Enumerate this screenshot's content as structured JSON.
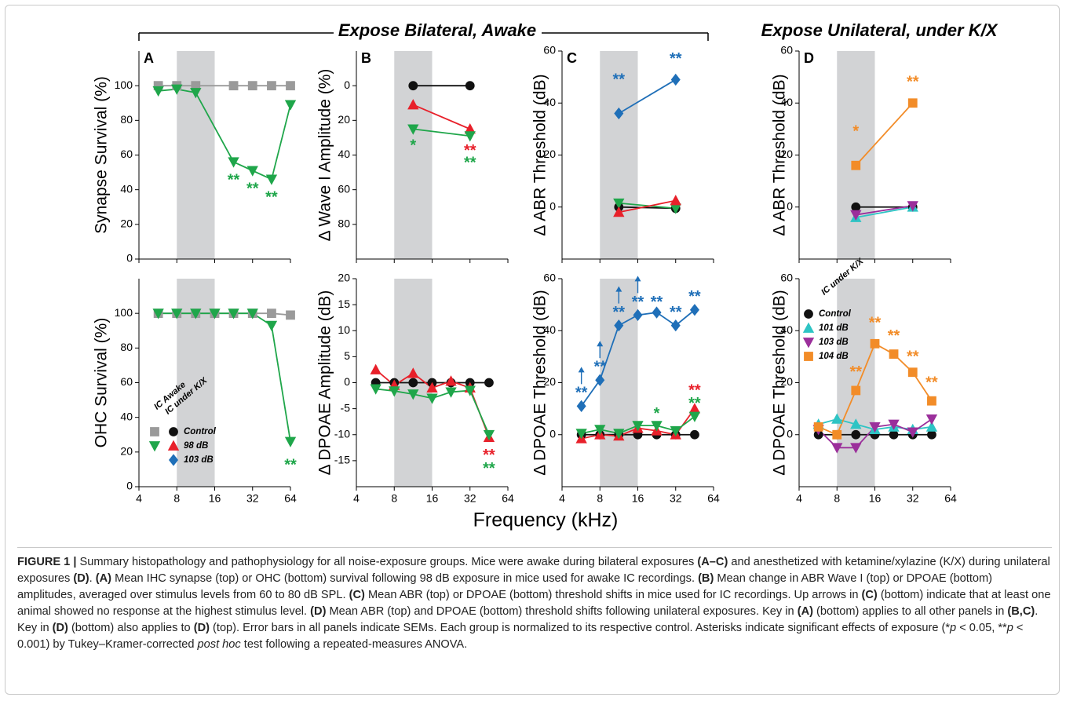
{
  "headers": [
    "Expose Bilateral, Awake",
    "Expose Unilateral, under K/X"
  ],
  "x_label": "Frequency (kHz)",
  "chart_data": [
    {
      "type": "line",
      "panel": "A",
      "y_label": "Synapse Survival (%)",
      "log_x": true,
      "xlim": [
        4,
        64
      ],
      "xticks": [
        4,
        8,
        16,
        32,
        64
      ],
      "show_xtick_labels": false,
      "ylim": [
        0,
        120
      ],
      "yticks": [
        0,
        20,
        40,
        60,
        80,
        100
      ],
      "shade": [
        8,
        16
      ],
      "x": [
        5.7,
        8,
        11.3,
        22.6,
        32,
        45.3,
        64
      ],
      "series": [
        {
          "color": "#9a9a9a",
          "marker": "square",
          "values": [
            100,
            100,
            100,
            100,
            100,
            100,
            100
          ]
        },
        {
          "color": "#1fa64a",
          "marker": "tri-down",
          "values": [
            97,
            98,
            96,
            56,
            51,
            46,
            89
          ]
        }
      ],
      "annotations": [
        {
          "text": "**",
          "x": 22.6,
          "y": 47,
          "color": "#1fa64a"
        },
        {
          "text": "**",
          "x": 32,
          "y": 42,
          "color": "#1fa64a"
        },
        {
          "text": "**",
          "x": 45.3,
          "y": 37,
          "color": "#1fa64a"
        }
      ]
    },
    {
      "type": "line",
      "panel": "B",
      "y_label": "Δ Wave I Amplitude (%)",
      "log_x": true,
      "xlim": [
        4,
        64
      ],
      "xticks": [
        4,
        8,
        16,
        32,
        64
      ],
      "show_xtick_labels": false,
      "ylim": [
        100,
        -20
      ],
      "yticks": [
        0,
        20,
        40,
        60,
        80
      ],
      "shade": [
        8,
        16
      ],
      "x": [
        11.3,
        32
      ],
      "series": [
        {
          "color": "#111111",
          "marker": "circle",
          "values": [
            0,
            0
          ]
        },
        {
          "color": "#e8202a",
          "marker": "tri-up",
          "values": [
            11,
            25
          ]
        },
        {
          "color": "#1fa64a",
          "marker": "tri-down",
          "values": [
            25,
            29
          ]
        }
      ],
      "annotations": [
        {
          "text": "*",
          "x": 11.3,
          "y": 33,
          "color": "#1fa64a"
        },
        {
          "text": "**",
          "x": 32,
          "y": 36,
          "color": "#e8202a"
        },
        {
          "text": "**",
          "x": 32,
          "y": 43,
          "color": "#1fa64a"
        }
      ]
    },
    {
      "type": "line",
      "panel": "C",
      "y_label": "Δ ABR Threshold (dB)",
      "log_x": true,
      "xlim": [
        4,
        64
      ],
      "xticks": [
        4,
        8,
        16,
        32,
        64
      ],
      "show_xtick_labels": false,
      "ylim": [
        -20,
        60
      ],
      "yticks": [
        0,
        20,
        40,
        60
      ],
      "shade": [
        8,
        16
      ],
      "x": [
        11.3,
        32
      ],
      "series": [
        {
          "color": "#111111",
          "marker": "circle",
          "values": [
            0,
            -0.5
          ]
        },
        {
          "color": "#1fa64a",
          "marker": "tri-down",
          "values": [
            1.5,
            -0.5
          ]
        },
        {
          "color": "#e8202a",
          "marker": "tri-up",
          "values": [
            -2,
            2.5
          ]
        },
        {
          "color": "#1f6fb8",
          "marker": "diamond",
          "values": [
            36,
            49
          ]
        }
      ],
      "annotations": [
        {
          "text": "**",
          "x": 11.3,
          "y": 50,
          "color": "#1f6fb8"
        },
        {
          "text": "**",
          "x": 32,
          "y": 58,
          "color": "#1f6fb8"
        }
      ]
    },
    {
      "type": "line",
      "panel": "D",
      "y_label": "Δ ABR Threshold (dB)",
      "log_x": true,
      "xlim": [
        4,
        64
      ],
      "xticks": [
        4,
        8,
        16,
        32,
        64
      ],
      "show_xtick_labels": false,
      "ylim": [
        -20,
        60
      ],
      "yticks": [
        0,
        20,
        40,
        60
      ],
      "shade": [
        8,
        16
      ],
      "x": [
        11.3,
        32
      ],
      "series": [
        {
          "color": "#111111",
          "marker": "circle",
          "values": [
            0,
            0
          ]
        },
        {
          "color": "#2ec4c4",
          "marker": "tri-up",
          "values": [
            -4,
            0
          ]
        },
        {
          "color": "#9b2f9b",
          "marker": "tri-down",
          "values": [
            -3,
            0.5
          ]
        },
        {
          "color": "#f28c28",
          "marker": "square",
          "values": [
            16,
            40
          ]
        }
      ],
      "annotations": [
        {
          "text": "*",
          "x": 11.3,
          "y": 30,
          "color": "#f28c28"
        },
        {
          "text": "**",
          "x": 32,
          "y": 49,
          "color": "#f28c28"
        }
      ]
    },
    {
      "type": "line",
      "y_label": "OHC Survival (%)",
      "log_x": true,
      "xlim": [
        4,
        64
      ],
      "xticks": [
        4,
        8,
        16,
        32,
        64
      ],
      "show_xtick_labels": true,
      "ylim": [
        0,
        120
      ],
      "yticks": [
        0,
        20,
        40,
        60,
        80,
        100
      ],
      "shade": [
        8,
        16
      ],
      "x": [
        5.7,
        8,
        11.3,
        16,
        22.6,
        32,
        45.3,
        64
      ],
      "series": [
        {
          "color": "#9a9a9a",
          "marker": "square",
          "values": [
            100,
            100,
            100,
            100,
            100,
            100,
            100,
            99
          ]
        },
        {
          "color": "#1fa64a",
          "marker": "tri-down",
          "values": [
            100,
            100,
            100,
            100,
            100,
            100,
            93,
            26
          ]
        }
      ],
      "annotations": [
        {
          "text": "**",
          "x": 64,
          "y": 14,
          "color": "#1fa64a"
        }
      ]
    },
    {
      "type": "line",
      "y_label": "Δ DPOAE Amplitude (dB)",
      "log_x": true,
      "xlim": [
        4,
        64
      ],
      "xticks": [
        4,
        8,
        16,
        32,
        64
      ],
      "show_xtick_labels": true,
      "ylim": [
        -20,
        20
      ],
      "yticks": [
        -15,
        -10,
        -5,
        0,
        5,
        10,
        15,
        20
      ],
      "shade": [
        8,
        16
      ],
      "x": [
        5.7,
        8,
        11.3,
        16,
        22.6,
        32,
        45.3
      ],
      "series": [
        {
          "color": "#111111",
          "marker": "circle",
          "values": [
            0,
            0,
            0,
            0,
            0,
            0,
            0
          ]
        },
        {
          "color": "#e8202a",
          "marker": "tri-up",
          "values": [
            2.5,
            -0.5,
            1.8,
            -1,
            0.3,
            -1,
            -10.5
          ]
        },
        {
          "color": "#1fa64a",
          "marker": "tri-down",
          "values": [
            -1.2,
            -1.6,
            -2.2,
            -3,
            -1.8,
            -1.5,
            -10
          ]
        }
      ],
      "annotations": [
        {
          "text": "**",
          "x": 45.3,
          "y": -13.5,
          "color": "#e8202a"
        },
        {
          "text": "**",
          "x": 45.3,
          "y": -16,
          "color": "#1fa64a"
        }
      ]
    },
    {
      "type": "line",
      "y_label": "Δ DPOAE Threshold (dB)",
      "log_x": true,
      "xlim": [
        4,
        64
      ],
      "xticks": [
        4,
        8,
        16,
        32,
        64
      ],
      "show_xtick_labels": true,
      "ylim": [
        -20,
        60
      ],
      "yticks": [
        0,
        20,
        40,
        60
      ],
      "shade": [
        8,
        16
      ],
      "x": [
        5.7,
        8,
        11.3,
        16,
        22.6,
        32,
        45.3
      ],
      "series": [
        {
          "color": "#111111",
          "marker": "circle",
          "values": [
            0,
            0,
            0,
            0,
            0,
            0,
            0
          ]
        },
        {
          "color": "#e8202a",
          "marker": "tri-up",
          "values": [
            -1.5,
            0,
            -0.5,
            2.5,
            1.5,
            0,
            10
          ]
        },
        {
          "color": "#1fa64a",
          "marker": "tri-down",
          "values": [
            0.5,
            2,
            0.5,
            3.5,
            3.5,
            1.5,
            7
          ]
        },
        {
          "color": "#1f6fb8",
          "marker": "diamond",
          "values": [
            11,
            21,
            42,
            46,
            47,
            42,
            48
          ]
        }
      ],
      "up_arrows": [
        5.7,
        8,
        11.3,
        16
      ],
      "annotations": [
        {
          "text": "**",
          "x": 5.7,
          "y": 17,
          "color": "#1f6fb8"
        },
        {
          "text": "**",
          "x": 8,
          "y": 27,
          "color": "#1f6fb8"
        },
        {
          "text": "**",
          "x": 11.3,
          "y": 48,
          "color": "#1f6fb8"
        },
        {
          "text": "**",
          "x": 16,
          "y": 52,
          "color": "#1f6fb8"
        },
        {
          "text": "**",
          "x": 22.6,
          "y": 52,
          "color": "#1f6fb8"
        },
        {
          "text": "**",
          "x": 32,
          "y": 48,
          "color": "#1f6fb8"
        },
        {
          "text": "**",
          "x": 45.3,
          "y": 54,
          "color": "#1f6fb8"
        },
        {
          "text": "*",
          "x": 22.6,
          "y": 9,
          "color": "#1fa64a"
        },
        {
          "text": "**",
          "x": 45.3,
          "y": 18,
          "color": "#e8202a"
        },
        {
          "text": "**",
          "x": 45.3,
          "y": 13,
          "color": "#1fa64a"
        }
      ]
    },
    {
      "type": "line",
      "y_label": "Δ DPOAE Threshold (dB)",
      "log_x": true,
      "xlim": [
        4,
        64
      ],
      "xticks": [
        4,
        8,
        16,
        32,
        64
      ],
      "show_xtick_labels": true,
      "ylim": [
        -20,
        60
      ],
      "yticks": [
        0,
        20,
        40,
        60
      ],
      "shade": [
        8,
        16
      ],
      "x": [
        5.7,
        8,
        11.3,
        16,
        22.6,
        32,
        45.3
      ],
      "series": [
        {
          "color": "#111111",
          "marker": "circle",
          "values": [
            0,
            0,
            0,
            0,
            0,
            0,
            0
          ]
        },
        {
          "color": "#2ec4c4",
          "marker": "tri-up",
          "values": [
            4,
            6,
            4,
            2,
            3,
            2,
            3
          ]
        },
        {
          "color": "#9b2f9b",
          "marker": "tri-down",
          "values": [
            2,
            -5,
            -5,
            3,
            4,
            1,
            6
          ]
        },
        {
          "color": "#f28c28",
          "marker": "square",
          "values": [
            3,
            0,
            17,
            35,
            31,
            24,
            13
          ]
        }
      ],
      "annotations": [
        {
          "text": "**",
          "x": 11.3,
          "y": 25,
          "color": "#f28c28"
        },
        {
          "text": "**",
          "x": 16,
          "y": 44,
          "color": "#f28c28"
        },
        {
          "text": "**",
          "x": 22.6,
          "y": 39,
          "color": "#f28c28"
        },
        {
          "text": "**",
          "x": 32,
          "y": 31,
          "color": "#f28c28"
        },
        {
          "text": "**",
          "x": 45.3,
          "y": 21,
          "color": "#f28c28"
        }
      ]
    }
  ],
  "legends": [
    {
      "headers": [
        "IC Awake",
        "IC under K/X"
      ],
      "rows": [
        {
          "label": "Control",
          "markers": [
            {
              "shape": "square",
              "color": "#9a9a9a"
            },
            {
              "shape": "circle",
              "color": "#111111"
            }
          ]
        },
        {
          "label": "98 dB",
          "markers": [
            {
              "shape": "tri-down",
              "color": "#1fa64a"
            },
            {
              "shape": "tri-up",
              "color": "#e8202a"
            }
          ]
        },
        {
          "label": "103 dB",
          "markers": [
            null,
            {
              "shape": "diamond",
              "color": "#1f6fb8"
            }
          ]
        }
      ]
    },
    {
      "headers": [
        "IC under K/X"
      ],
      "rows": [
        {
          "label": "Control",
          "markers": [
            {
              "shape": "circle",
              "color": "#111111"
            }
          ]
        },
        {
          "label": "101 dB",
          "markers": [
            {
              "shape": "tri-up",
              "color": "#2ec4c4"
            }
          ]
        },
        {
          "label": "103 dB",
          "markers": [
            {
              "shape": "tri-down",
              "color": "#9b2f9b"
            }
          ]
        },
        {
          "label": "104 dB",
          "markers": [
            {
              "shape": "square",
              "color": "#f28c28"
            }
          ]
        }
      ]
    }
  ],
  "caption": [
    {
      "text": "FIGURE 1 |",
      "style": "bold"
    },
    {
      "text": " Summary histopathology and pathophysiology for all noise-exposure groups. Mice were awake during bilateral exposures "
    },
    {
      "text": "(A–C)",
      "style": "bold"
    },
    {
      "text": " and anesthetized with ketamine/xylazine (K/X) during unilateral exposures "
    },
    {
      "text": "(D)",
      "style": "bold"
    },
    {
      "text": ". "
    },
    {
      "text": "(A)",
      "style": "bold"
    },
    {
      "text": " Mean IHC synapse (top) or OHC (bottom) survival following 98 dB exposure in mice used for awake IC recordings. "
    },
    {
      "text": "(B)",
      "style": "bold"
    },
    {
      "text": " Mean change in ABR Wave I (top) or DPOAE (bottom) amplitudes, averaged over stimulus levels from 60 to 80 dB SPL. "
    },
    {
      "text": "(C)",
      "style": "bold"
    },
    {
      "text": " Mean ABR (top) or DPOAE (bottom) threshold shifts in mice used for IC recordings. Up arrows in "
    },
    {
      "text": "(C)",
      "style": "bold"
    },
    {
      "text": " (bottom) indicate that at least one animal showed no response at the highest stimulus level. "
    },
    {
      "text": "(D)",
      "style": "bold"
    },
    {
      "text": " Mean ABR (top) and DPOAE (bottom) threshold shifts following unilateral exposures. Key in "
    },
    {
      "text": "(A)",
      "style": "bold"
    },
    {
      "text": " (bottom) applies to all other panels in "
    },
    {
      "text": "(B,C)",
      "style": "bold"
    },
    {
      "text": ". Key in "
    },
    {
      "text": "(D)",
      "style": "bold"
    },
    {
      "text": " (bottom) also applies to "
    },
    {
      "text": "(D)",
      "style": "bold"
    },
    {
      "text": " (top). Error bars in all panels indicate SEMs. Each group is normalized to its respective control. Asterisks indicate significant effects of exposure (*"
    },
    {
      "text": "p",
      "style": "italic"
    },
    {
      "text": " < 0.05, **"
    },
    {
      "text": "p",
      "style": "italic"
    },
    {
      "text": " < 0.001) by Tukey–Kramer-corrected "
    },
    {
      "text": "post hoc",
      "style": "italic"
    },
    {
      "text": " test following a repeated-measures ANOVA."
    }
  ]
}
